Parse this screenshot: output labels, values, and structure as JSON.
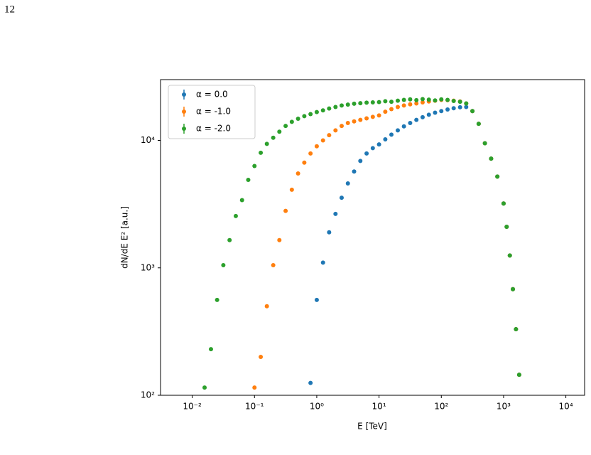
{
  "page_number": "12",
  "chart_data": {
    "type": "scatter",
    "xlabel": "E [TeV]",
    "ylabel": "dN/dE E² [a.u.]",
    "xscale": "log",
    "yscale": "log",
    "xlim": [
      0.0031,
      20000
    ],
    "ylim": [
      100,
      30000
    ],
    "xticks": [
      {
        "value": 0.01,
        "label": "10⁻²"
      },
      {
        "value": 0.1,
        "label": "10⁻¹"
      },
      {
        "value": 1,
        "label": "10⁰"
      },
      {
        "value": 10,
        "label": "10¹"
      },
      {
        "value": 100,
        "label": "10²"
      },
      {
        "value": 1000,
        "label": "10³"
      },
      {
        "value": 10000,
        "label": "10⁴"
      }
    ],
    "yticks": [
      {
        "value": 100,
        "label": "10²"
      },
      {
        "value": 1000,
        "label": "10³"
      },
      {
        "value": 10000,
        "label": "10⁴"
      }
    ],
    "legend": "upper left",
    "x": [
      0.0158,
      0.02,
      0.0251,
      0.0316,
      0.0398,
      0.0501,
      0.0631,
      0.0794,
      0.1,
      0.126,
      0.158,
      0.2,
      0.251,
      0.316,
      0.398,
      0.501,
      0.631,
      0.794,
      1,
      1.26,
      1.58,
      2,
      2.51,
      3.16,
      3.98,
      5.01,
      6.31,
      7.94,
      10,
      12.6,
      15.8,
      20,
      25.1,
      31.6,
      39.8,
      50.1,
      63.1,
      79.4,
      100,
      126,
      158,
      200,
      251,
      316,
      398,
      501,
      631,
      794,
      1000,
      1120,
      1260,
      1410,
      1580,
      1780
    ],
    "series": [
      {
        "name": "α = 0.0",
        "color": "#1f77b4",
        "values": [
          null,
          null,
          null,
          null,
          null,
          null,
          null,
          null,
          null,
          null,
          null,
          null,
          null,
          null,
          null,
          null,
          null,
          125,
          560,
          1100,
          1900,
          2650,
          3550,
          4600,
          5700,
          6900,
          7900,
          8700,
          9300,
          10200,
          11100,
          12000,
          12900,
          13700,
          14500,
          15200,
          15900,
          16500,
          17000,
          17500,
          17900,
          18200,
          18300,
          17000,
          13500,
          9500,
          7200,
          5200,
          3200,
          2100,
          1250,
          680,
          330,
          145
        ]
      },
      {
        "name": "α = -1.0",
        "color": "#ff7f0e",
        "values": [
          null,
          null,
          null,
          null,
          null,
          null,
          null,
          null,
          115,
          200,
          500,
          1050,
          1650,
          2800,
          4100,
          5500,
          6700,
          7900,
          9000,
          10000,
          11000,
          12000,
          13000,
          13700,
          14100,
          14500,
          14900,
          15300,
          15700,
          16800,
          17600,
          18300,
          18800,
          19200,
          19500,
          19900,
          20200,
          20500,
          20800,
          20700,
          20500,
          20200,
          19500,
          17000,
          13500,
          9500,
          7200,
          5200,
          3200,
          2100,
          1250,
          680,
          330,
          145
        ]
      },
      {
        "name": "α = -2.0",
        "color": "#2ca02c",
        "values": [
          115,
          230,
          560,
          1050,
          1650,
          2550,
          3400,
          4900,
          6300,
          8000,
          9400,
          10500,
          11700,
          13000,
          14000,
          14800,
          15500,
          16100,
          16700,
          17200,
          17800,
          18300,
          18800,
          19100,
          19400,
          19600,
          19800,
          19900,
          20000,
          20300,
          20100,
          20500,
          20800,
          21000,
          20700,
          21100,
          20900,
          20600,
          21000,
          20800,
          20400,
          20100,
          19500,
          17000,
          13500,
          9500,
          7200,
          5200,
          3200,
          2100,
          1250,
          680,
          330,
          145
        ]
      }
    ]
  }
}
